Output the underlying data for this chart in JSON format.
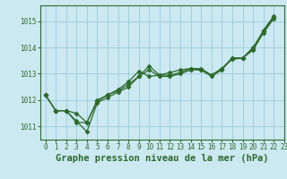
{
  "title": "Graphe pression niveau de la mer (hPa)",
  "background_color": "#cce8f0",
  "grid_color": "#99ccdd",
  "line_color": "#2d6a2d",
  "xlim": [
    -0.5,
    23
  ],
  "ylim": [
    1010.5,
    1015.6
  ],
  "yticks": [
    1011,
    1012,
    1013,
    1014,
    1015
  ],
  "xticks": [
    0,
    1,
    2,
    3,
    4,
    5,
    6,
    7,
    8,
    9,
    10,
    11,
    12,
    13,
    14,
    15,
    16,
    17,
    18,
    19,
    20,
    21,
    22,
    23
  ],
  "series": [
    [
      1012.2,
      1011.6,
      1011.6,
      1011.2,
      1010.8,
      1011.9,
      1012.1,
      1012.3,
      1012.5,
      1012.9,
      1013.15,
      1012.9,
      1012.9,
      1013.0,
      1013.15,
      1013.15,
      1012.9,
      1013.15,
      1013.6,
      1013.6,
      1014.0,
      1014.6,
      1015.15
    ],
    [
      1012.2,
      1011.6,
      1011.6,
      1011.15,
      1011.15,
      1012.0,
      1012.2,
      1012.35,
      1012.6,
      1012.9,
      1013.3,
      1012.95,
      1012.95,
      1013.05,
      1013.2,
      1013.2,
      1012.95,
      1013.2,
      1013.6,
      1013.6,
      1013.95,
      1014.65,
      1015.2
    ],
    [
      1012.2,
      1011.6,
      1011.6,
      1011.5,
      1011.15,
      1011.95,
      1012.2,
      1012.4,
      1012.7,
      1013.1,
      1012.9,
      1012.95,
      1013.05,
      1013.15,
      1013.2,
      1013.15,
      1012.95,
      1013.2,
      1013.55,
      1013.6,
      1013.9,
      1014.55,
      1015.1
    ]
  ],
  "marker": "D",
  "markersize": 2.5,
  "linewidth": 0.9,
  "title_fontsize": 7.5,
  "tick_fontsize": 5.5
}
